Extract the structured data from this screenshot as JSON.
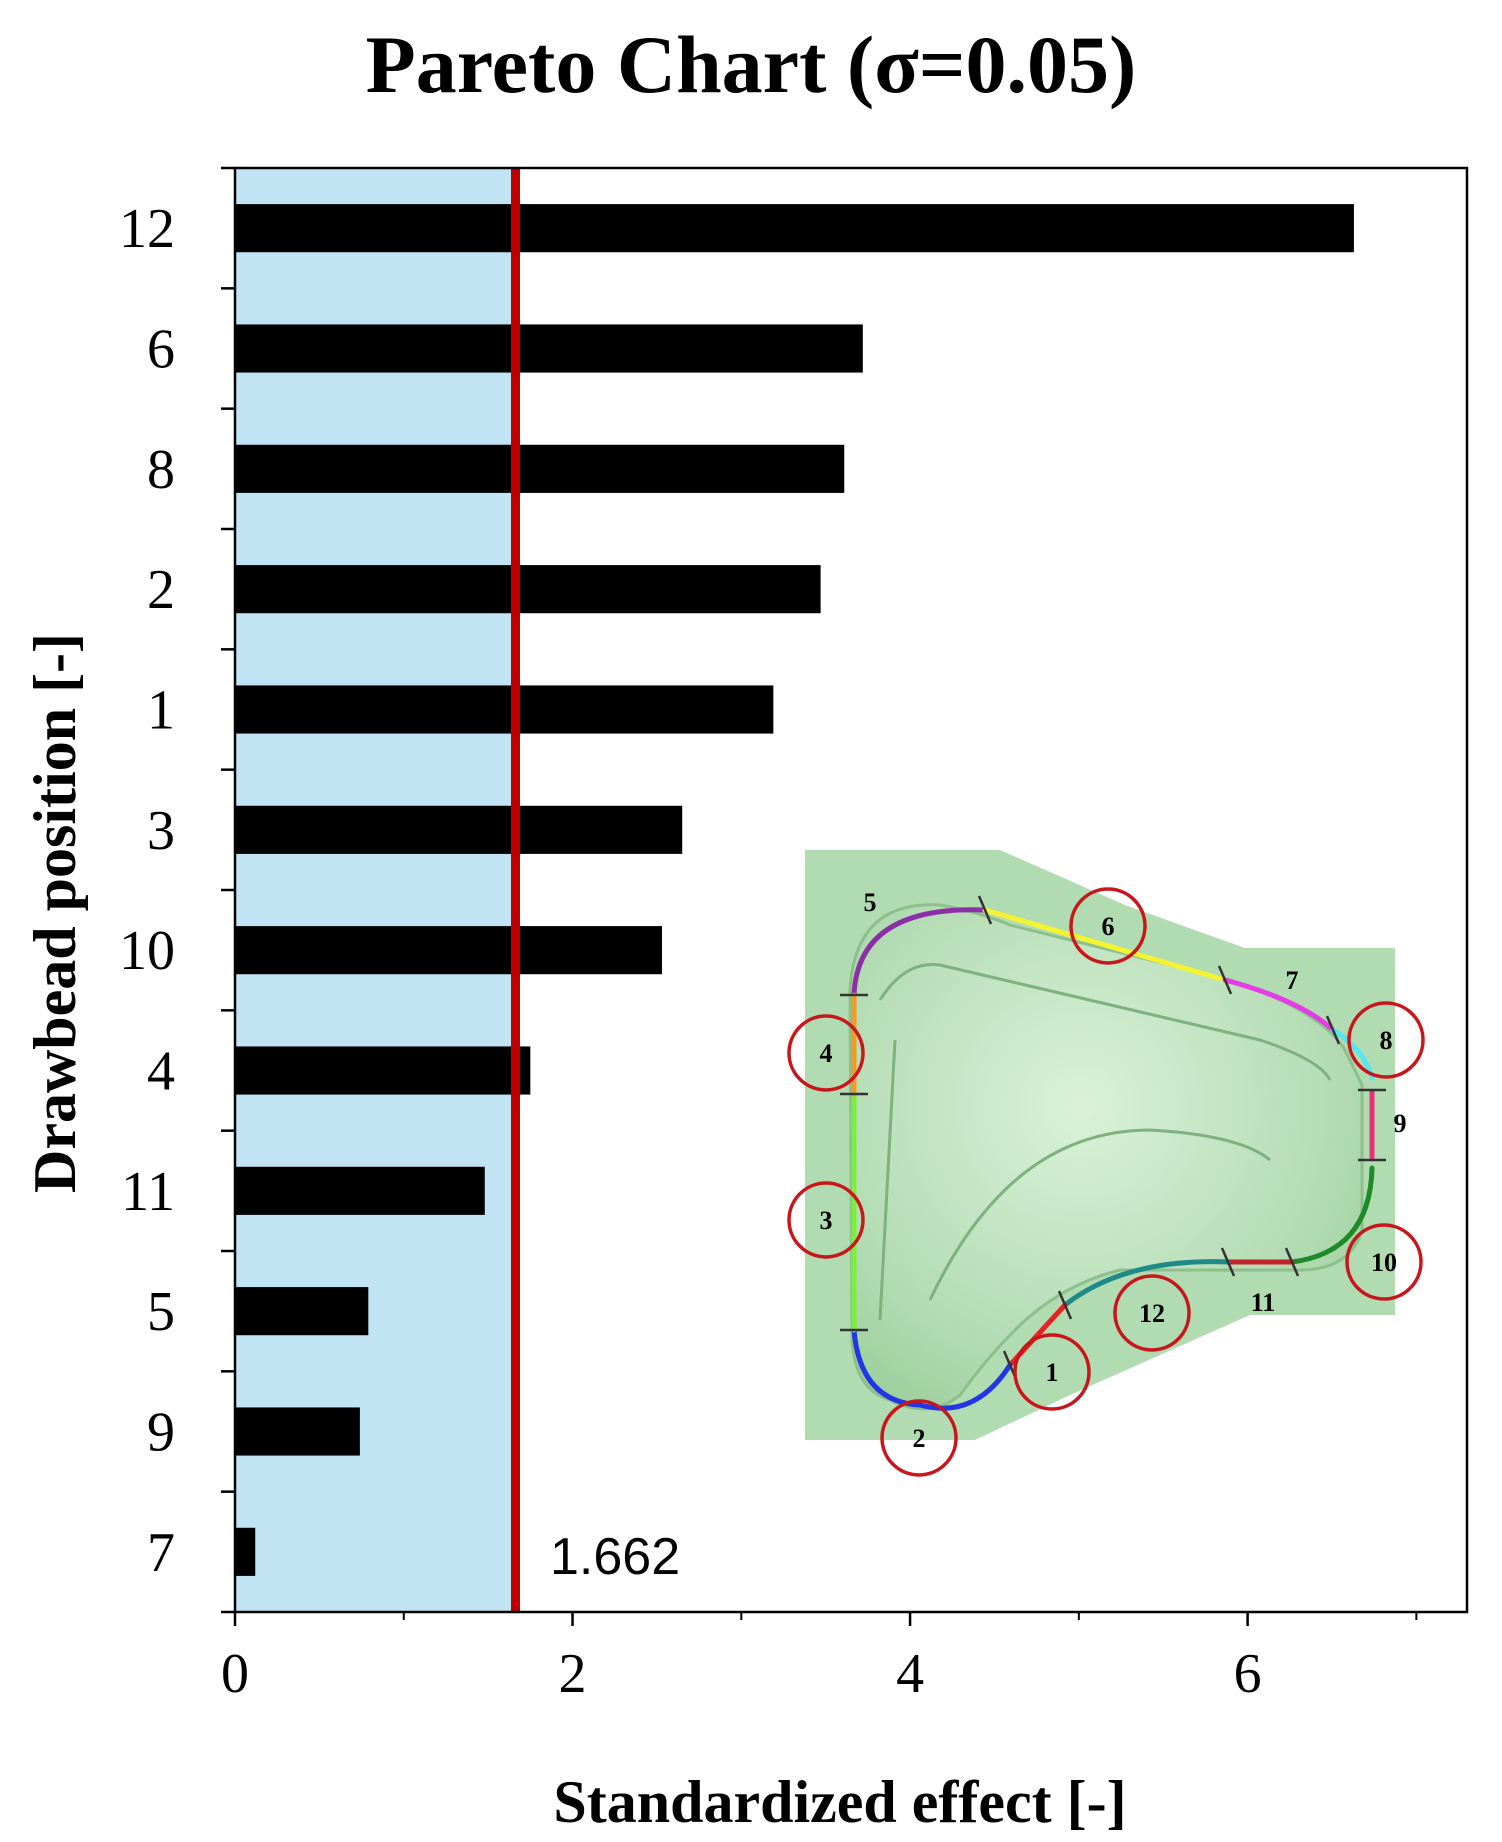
{
  "chart_data": {
    "type": "bar",
    "orientation": "horizontal",
    "title": "Pareto Chart (σ=0.05)",
    "xlabel": "Standardized effect [-]",
    "ylabel": "Drawbead position [-]",
    "categories": [
      "12",
      "6",
      "8",
      "2",
      "1",
      "3",
      "10",
      "4",
      "11",
      "5",
      "9",
      "7"
    ],
    "values": [
      6.63,
      3.72,
      3.61,
      3.47,
      3.19,
      2.65,
      2.53,
      1.75,
      1.48,
      0.79,
      0.74,
      0.12
    ],
    "xlim": [
      0,
      7.3
    ],
    "xticks": [
      "0",
      "2",
      "4",
      "6"
    ],
    "xtick_values": [
      0,
      2,
      4,
      6
    ],
    "threshold": {
      "value": 1.662,
      "label": "1.662",
      "color": "#c00000"
    },
    "region_color": "#c1e4f4",
    "bar_color": "#000000",
    "grid": false,
    "legend": "none",
    "inset": {
      "description_labels": [
        "5",
        "6",
        "7",
        "8",
        "9",
        "10",
        "11",
        "12",
        "1",
        "2",
        "3",
        "4"
      ],
      "segment_colors": {
        "5": "#8b2fa6",
        "6": "#f5f232",
        "7": "#e53ce6",
        "8": "#55e6f0",
        "9": "#e8307a",
        "10": "#1f8a2a",
        "11": "#c2222a",
        "12": "#1e8a8a",
        "1": "#e62222",
        "2": "#2236e6",
        "3": "#7af03a",
        "4": "#f09a2a"
      }
    }
  }
}
